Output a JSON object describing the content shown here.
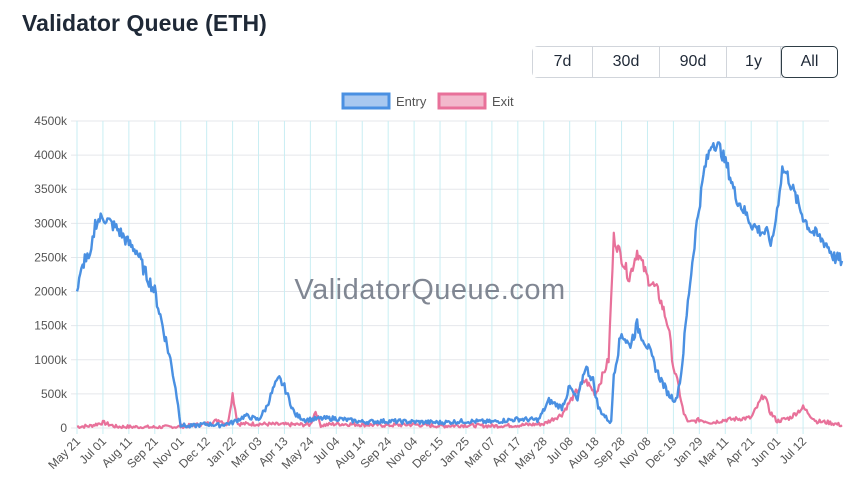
{
  "page": {
    "title": "Validator Queue (ETH)",
    "watermark": "ValidatorQueue.com"
  },
  "range_selector": {
    "options": [
      "7d",
      "30d",
      "90d",
      "1y",
      "All"
    ],
    "selected": "All"
  },
  "colors": {
    "entry_line": "#4a90e2",
    "entry_fill": "#a8c8f0",
    "exit_line": "#e8719a",
    "exit_fill": "#f2b8cc",
    "grid_h": "#e5e7eb",
    "grid_v": "#c9eef3"
  },
  "chart_data": {
    "type": "line",
    "title": "",
    "xlabel": "",
    "ylabel": "",
    "ylim": [
      0,
      4500000
    ],
    "y_ticks": [
      0,
      500000,
      1000000,
      1500000,
      2000000,
      2500000,
      3000000,
      3500000,
      4000000,
      4500000
    ],
    "y_tick_labels": [
      "0",
      "500k",
      "1000k",
      "1500k",
      "2000k",
      "2500k",
      "3000k",
      "3500k",
      "4000k",
      "4500k"
    ],
    "x_tick_labels": [
      "May 21",
      "Jul 01",
      "Aug 11",
      "Sep 21",
      "Nov 01",
      "Dec 12",
      "Jan 22",
      "Mar 03",
      "Apr 13",
      "May 24",
      "Jul 04",
      "Aug 14",
      "Sep 24",
      "Nov 04",
      "Dec 15",
      "Jan 25",
      "Mar 07",
      "Apr 17",
      "May 28",
      "Jul 08",
      "Aug 18",
      "Sep 28",
      "Nov 08",
      "Dec 19",
      "Jan 29",
      "Mar 11",
      "Apr 21",
      "Jun 01",
      "Jul 12"
    ],
    "grid": true,
    "legend_position": "top-center",
    "series": [
      {
        "name": "Entry",
        "points": [
          [
            0,
            2000000
          ],
          [
            0.3,
            2500000
          ],
          [
            0.5,
            2450000
          ],
          [
            0.7,
            3000000
          ],
          [
            1,
            3100000
          ],
          [
            1.3,
            3000000
          ],
          [
            1.6,
            2900000
          ],
          [
            2,
            2700000
          ],
          [
            2.3,
            2600000
          ],
          [
            2.6,
            2300000
          ],
          [
            3,
            2000000
          ],
          [
            3.3,
            1500000
          ],
          [
            3.6,
            1000000
          ],
          [
            3.8,
            600000
          ],
          [
            4,
            50000
          ],
          [
            4.3,
            20000
          ],
          [
            5,
            60000
          ],
          [
            5.5,
            40000
          ],
          [
            6,
            80000
          ],
          [
            6.5,
            180000
          ],
          [
            7,
            120000
          ],
          [
            7.3,
            300000
          ],
          [
            7.6,
            600000
          ],
          [
            7.8,
            720000
          ],
          [
            8,
            600000
          ],
          [
            8.4,
            200000
          ],
          [
            8.8,
            120000
          ],
          [
            9.5,
            140000
          ],
          [
            10,
            140000
          ],
          [
            11,
            90000
          ],
          [
            12,
            100000
          ],
          [
            13,
            90000
          ],
          [
            14,
            80000
          ],
          [
            15,
            100000
          ],
          [
            16,
            90000
          ],
          [
            17,
            130000
          ],
          [
            17.8,
            120000
          ],
          [
            18.2,
            400000
          ],
          [
            18.7,
            300000
          ],
          [
            19,
            600000
          ],
          [
            19.3,
            400000
          ],
          [
            19.6,
            900000
          ],
          [
            19.9,
            700000
          ],
          [
            20.1,
            300000
          ],
          [
            20.4,
            150000
          ],
          [
            20.6,
            80000
          ],
          [
            20.7,
            800000
          ],
          [
            21,
            1400000
          ],
          [
            21.3,
            1200000
          ],
          [
            21.6,
            1500000
          ],
          [
            22,
            1200000
          ],
          [
            22.4,
            800000
          ],
          [
            22.8,
            500000
          ],
          [
            23.1,
            400000
          ],
          [
            23.3,
            800000
          ],
          [
            23.6,
            2000000
          ],
          [
            23.9,
            3000000
          ],
          [
            24.2,
            3800000
          ],
          [
            24.5,
            4200000
          ],
          [
            24.8,
            4100000
          ],
          [
            25.1,
            3800000
          ],
          [
            25.4,
            3400000
          ],
          [
            25.7,
            3200000
          ],
          [
            26,
            3000000
          ],
          [
            26.3,
            2900000
          ],
          [
            26.6,
            2850000
          ],
          [
            26.8,
            2700000
          ],
          [
            27,
            3200000
          ],
          [
            27.2,
            3800000
          ],
          [
            27.4,
            3700000
          ],
          [
            27.7,
            3400000
          ],
          [
            28,
            3100000
          ],
          [
            28.3,
            2900000
          ],
          [
            28.6,
            2800000
          ],
          [
            28.9,
            2700000
          ],
          [
            29.2,
            2500000
          ],
          [
            29.5,
            2450000
          ]
        ]
      },
      {
        "name": "Exit",
        "points": [
          [
            0,
            20000
          ],
          [
            0.5,
            30000
          ],
          [
            1,
            80000
          ],
          [
            1.5,
            20000
          ],
          [
            3,
            10000
          ],
          [
            4,
            20000
          ],
          [
            5,
            60000
          ],
          [
            5.5,
            120000
          ],
          [
            5.8,
            40000
          ],
          [
            6,
            500000
          ],
          [
            6.2,
            60000
          ],
          [
            7,
            60000
          ],
          [
            8,
            50000
          ],
          [
            9,
            50000
          ],
          [
            9.2,
            250000
          ],
          [
            9.4,
            40000
          ],
          [
            10,
            60000
          ],
          [
            11,
            50000
          ],
          [
            12,
            40000
          ],
          [
            13,
            50000
          ],
          [
            14,
            30000
          ],
          [
            15,
            40000
          ],
          [
            16,
            30000
          ],
          [
            17,
            40000
          ],
          [
            18,
            60000
          ],
          [
            18.7,
            200000
          ],
          [
            19.2,
            500000
          ],
          [
            19.6,
            700000
          ],
          [
            20,
            500000
          ],
          [
            20.3,
            800000
          ],
          [
            20.5,
            1000000
          ],
          [
            20.7,
            2800000
          ],
          [
            21,
            2500000
          ],
          [
            21.3,
            2200000
          ],
          [
            21.6,
            2600000
          ],
          [
            22,
            2200000
          ],
          [
            22.4,
            2000000
          ],
          [
            22.8,
            1500000
          ],
          [
            23,
            900000
          ],
          [
            23.2,
            600000
          ],
          [
            23.4,
            200000
          ],
          [
            23.6,
            80000
          ],
          [
            24,
            120000
          ],
          [
            24.5,
            80000
          ],
          [
            25,
            120000
          ],
          [
            26,
            150000
          ],
          [
            26.5,
            500000
          ],
          [
            26.7,
            250000
          ],
          [
            27,
            100000
          ],
          [
            27.5,
            150000
          ],
          [
            28,
            300000
          ],
          [
            28.5,
            100000
          ],
          [
            29,
            80000
          ],
          [
            29.5,
            40000
          ]
        ]
      }
    ]
  }
}
